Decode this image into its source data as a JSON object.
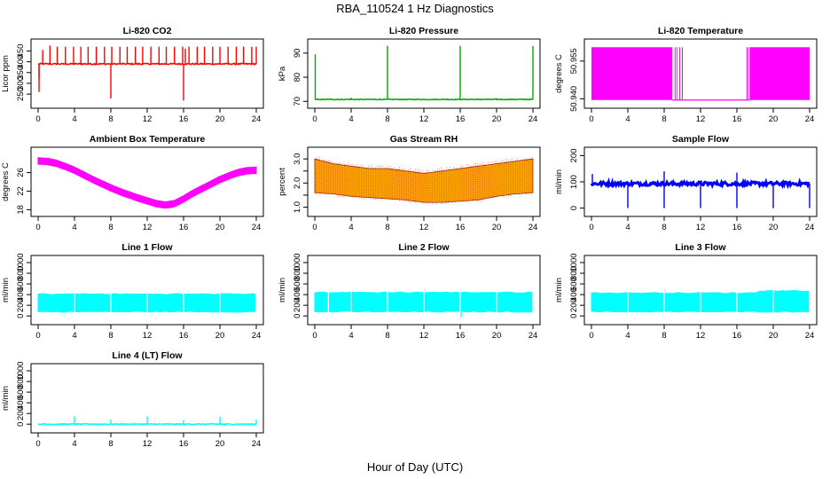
{
  "figure": {
    "title": "RBA_110524  1 Hz Diagnostics",
    "xlabel": "Hour of Day (UTC)"
  },
  "chart_data": [
    {
      "type": "line",
      "title": "Li-820 CO2",
      "ylabel": "Licor ppm",
      "color": "#ff0000",
      "xlim": [
        0,
        24
      ],
      "xticks": [
        0,
        4,
        8,
        12,
        16,
        20,
        24
      ],
      "ylim": [
        205,
        485
      ],
      "yticks": [
        250,
        300,
        350,
        400,
        450
      ],
      "baseline": 390,
      "spikes": [
        {
          "x": 0.1,
          "y": 260
        },
        {
          "x": 0.1,
          "y": 320
        },
        {
          "x": 0.5,
          "y": 455
        },
        {
          "x": 1.3,
          "y": 475
        },
        {
          "x": 2.1,
          "y": 470
        },
        {
          "x": 3.0,
          "y": 470
        },
        {
          "x": 3.9,
          "y": 470
        },
        {
          "x": 4.7,
          "y": 470
        },
        {
          "x": 5.5,
          "y": 470
        },
        {
          "x": 6.4,
          "y": 470
        },
        {
          "x": 7.3,
          "y": 470
        },
        {
          "x": 8.0,
          "y": 230
        },
        {
          "x": 8.1,
          "y": 470
        },
        {
          "x": 9.0,
          "y": 470
        },
        {
          "x": 9.8,
          "y": 470
        },
        {
          "x": 10.7,
          "y": 470
        },
        {
          "x": 11.5,
          "y": 470
        },
        {
          "x": 12.4,
          "y": 470
        },
        {
          "x": 13.3,
          "y": 470
        },
        {
          "x": 14.1,
          "y": 470
        },
        {
          "x": 15.0,
          "y": 470
        },
        {
          "x": 15.9,
          "y": 470
        },
        {
          "x": 16.0,
          "y": 220
        },
        {
          "x": 16.2,
          "y": 460
        },
        {
          "x": 16.6,
          "y": 470
        },
        {
          "x": 17.5,
          "y": 470
        },
        {
          "x": 18.3,
          "y": 470
        },
        {
          "x": 19.2,
          "y": 470
        },
        {
          "x": 20.0,
          "y": 470
        },
        {
          "x": 20.9,
          "y": 470
        },
        {
          "x": 21.8,
          "y": 470
        },
        {
          "x": 22.6,
          "y": 470
        },
        {
          "x": 23.5,
          "y": 470
        },
        {
          "x": 24.0,
          "y": 470
        }
      ]
    },
    {
      "type": "line",
      "title": "Li-820 Pressure",
      "ylabel": "kPa",
      "color": "#00aa00",
      "xlim": [
        0,
        24
      ],
      "xticks": [
        0,
        4,
        8,
        12,
        16,
        20,
        24
      ],
      "ylim": [
        69,
        94
      ],
      "yticks": [
        70,
        80,
        90
      ],
      "baseline": 70.8,
      "spikes": [
        {
          "x": 0.05,
          "y": 89.5
        },
        {
          "x": 4.0,
          "y": 71.5
        },
        {
          "x": 8.0,
          "y": 93
        },
        {
          "x": 12.0,
          "y": 71.0
        },
        {
          "x": 16.0,
          "y": 93
        },
        {
          "x": 20.0,
          "y": 71.3
        },
        {
          "x": 24.0,
          "y": 93
        }
      ]
    },
    {
      "type": "area",
      "title": "Li-820 Temperature",
      "ylabel": "degrees C",
      "color": "#ff00ff",
      "xlim": [
        0,
        24
      ],
      "xticks": [
        0,
        4,
        8,
        12,
        16,
        20,
        24
      ],
      "ylim": [
        50.938,
        50.962
      ],
      "yticks": [
        50.94,
        50.955
      ],
      "ytick_labels": [
        "50.940",
        "50.955"
      ],
      "band_low": 50.9395,
      "band_high": 50.9605,
      "solid_ranges": [
        [
          0,
          8.9
        ],
        [
          17.4,
          24
        ]
      ],
      "flicker_x": [
        9.2,
        9.4,
        9.7,
        10.0,
        17.1,
        17.25
      ]
    },
    {
      "type": "line",
      "title": "Ambient Box Temperature",
      "ylabel": "degrees C",
      "color": "#ff00ff",
      "xlim": [
        0,
        24
      ],
      "xticks": [
        0,
        4,
        8,
        12,
        16,
        20,
        24
      ],
      "ylim": [
        17.5,
        30.5
      ],
      "yticks": [
        18,
        22,
        26
      ],
      "x": [
        0,
        1,
        2,
        3,
        4,
        5,
        6,
        7,
        8,
        9,
        10,
        11,
        12,
        13,
        14,
        15,
        16,
        17,
        18,
        19,
        20,
        21,
        22,
        23,
        24
      ],
      "y": [
        28.5,
        28.4,
        28.0,
        27.3,
        26.5,
        25.5,
        24.5,
        23.6,
        22.7,
        21.9,
        21.2,
        20.5,
        19.9,
        19.3,
        19.0,
        19.3,
        20.3,
        21.5,
        22.5,
        23.5,
        24.5,
        25.3,
        26.0,
        26.4,
        26.5
      ],
      "band_halfwidth": 0.7
    },
    {
      "type": "area",
      "title": "Gas Stream RH",
      "ylabel": "percent",
      "color": "#ffa500",
      "edge_color": "#aa2200",
      "xlim": [
        0,
        24
      ],
      "xticks": [
        0,
        4,
        8,
        12,
        16,
        20,
        24
      ],
      "ylim": [
        0.8,
        3.3
      ],
      "yticks": [
        1.0,
        1.5,
        2.0,
        2.5,
        3.0
      ],
      "ytick_labels": [
        "1.0",
        "",
        "2.0",
        "",
        "3.0"
      ],
      "x": [
        0,
        2,
        4,
        6,
        8,
        10,
        12,
        14,
        16,
        18,
        20,
        22,
        24
      ],
      "upper": [
        3.0,
        2.8,
        2.7,
        2.6,
        2.6,
        2.5,
        2.4,
        2.5,
        2.6,
        2.7,
        2.8,
        2.9,
        3.0
      ],
      "lower": [
        1.6,
        1.55,
        1.45,
        1.4,
        1.35,
        1.3,
        1.2,
        1.2,
        1.25,
        1.3,
        1.45,
        1.55,
        1.6
      ]
    },
    {
      "type": "line",
      "title": "Sample Flow",
      "ylabel": "ml/min",
      "color": "#0000ff",
      "xlim": [
        0,
        24
      ],
      "xticks": [
        0,
        4,
        8,
        12,
        16,
        20,
        24
      ],
      "ylim": [
        -15,
        215
      ],
      "yticks": [
        0,
        100,
        200
      ],
      "baseline": 93,
      "spikes": [
        {
          "x": 0.1,
          "y": 130
        },
        {
          "x": 4.0,
          "y": 0
        },
        {
          "x": 8.0,
          "y": 140
        },
        {
          "x": 8.0,
          "y": 0
        },
        {
          "x": 12.0,
          "y": 0
        },
        {
          "x": 12.1,
          "y": 105
        },
        {
          "x": 16.0,
          "y": 135
        },
        {
          "x": 16.0,
          "y": 0
        },
        {
          "x": 20.0,
          "y": 0
        },
        {
          "x": 24.0,
          "y": 0
        }
      ]
    },
    {
      "type": "area",
      "title": "Line 1 Flow",
      "ylabel": "ml/min",
      "color": "#00ffff",
      "xlim": [
        0,
        24
      ],
      "xticks": [
        0,
        4,
        8,
        12,
        16,
        20,
        24
      ],
      "ylim": [
        -80,
        1050
      ],
      "yticks": [
        0,
        200,
        400,
        600,
        800,
        1000
      ],
      "band_low": 80,
      "band_high": 410,
      "gaps": [
        4.0,
        8.0,
        12.0,
        16.0,
        20.0,
        24.0
      ]
    },
    {
      "type": "area",
      "title": "Line 2 Flow",
      "ylabel": "ml/min",
      "color": "#00ffff",
      "xlim": [
        0,
        24
      ],
      "xticks": [
        0,
        4,
        8,
        12,
        16,
        20,
        24
      ],
      "ylim": [
        -80,
        1050
      ],
      "yticks": [
        0,
        200,
        400,
        600,
        800,
        1000
      ],
      "band_low": 80,
      "band_high": 440,
      "gaps": [
        1.5,
        4.0,
        8.0,
        12.0,
        16.0,
        20.0,
        24.0
      ],
      "dips": [
        {
          "x": 16.1,
          "y": -20
        }
      ]
    },
    {
      "type": "area",
      "title": "Line 3 Flow",
      "ylabel": "ml/min",
      "color": "#00ffff",
      "xlim": [
        0,
        24
      ],
      "xticks": [
        0,
        4,
        8,
        12,
        16,
        20,
        24
      ],
      "ylim": [
        -80,
        1050
      ],
      "yticks": [
        0,
        200,
        400,
        600,
        800,
        1000
      ],
      "band_low": 80,
      "band_high": 430,
      "band_high_late": 470,
      "late_start": 18.5,
      "gaps": [
        4.0,
        8.0,
        12.0,
        16.0,
        20.0,
        24.0
      ]
    },
    {
      "type": "line",
      "title": "Line 4 (LT) Flow",
      "ylabel": "ml/min",
      "color": "#00ffff",
      "xlim": [
        0,
        24
      ],
      "xticks": [
        0,
        4,
        8,
        12,
        16,
        20,
        24
      ],
      "ylim": [
        -80,
        1050
      ],
      "yticks": [
        0,
        200,
        400,
        600,
        800,
        1000
      ],
      "baseline": 0,
      "spikes": [
        {
          "x": 4.0,
          "y": 150
        },
        {
          "x": 8.0,
          "y": 90
        },
        {
          "x": 12.0,
          "y": 150
        },
        {
          "x": 16.0,
          "y": 80
        },
        {
          "x": 20.0,
          "y": 140
        },
        {
          "x": 20.5,
          "y": -40
        },
        {
          "x": 24.0,
          "y": 90
        }
      ]
    }
  ]
}
